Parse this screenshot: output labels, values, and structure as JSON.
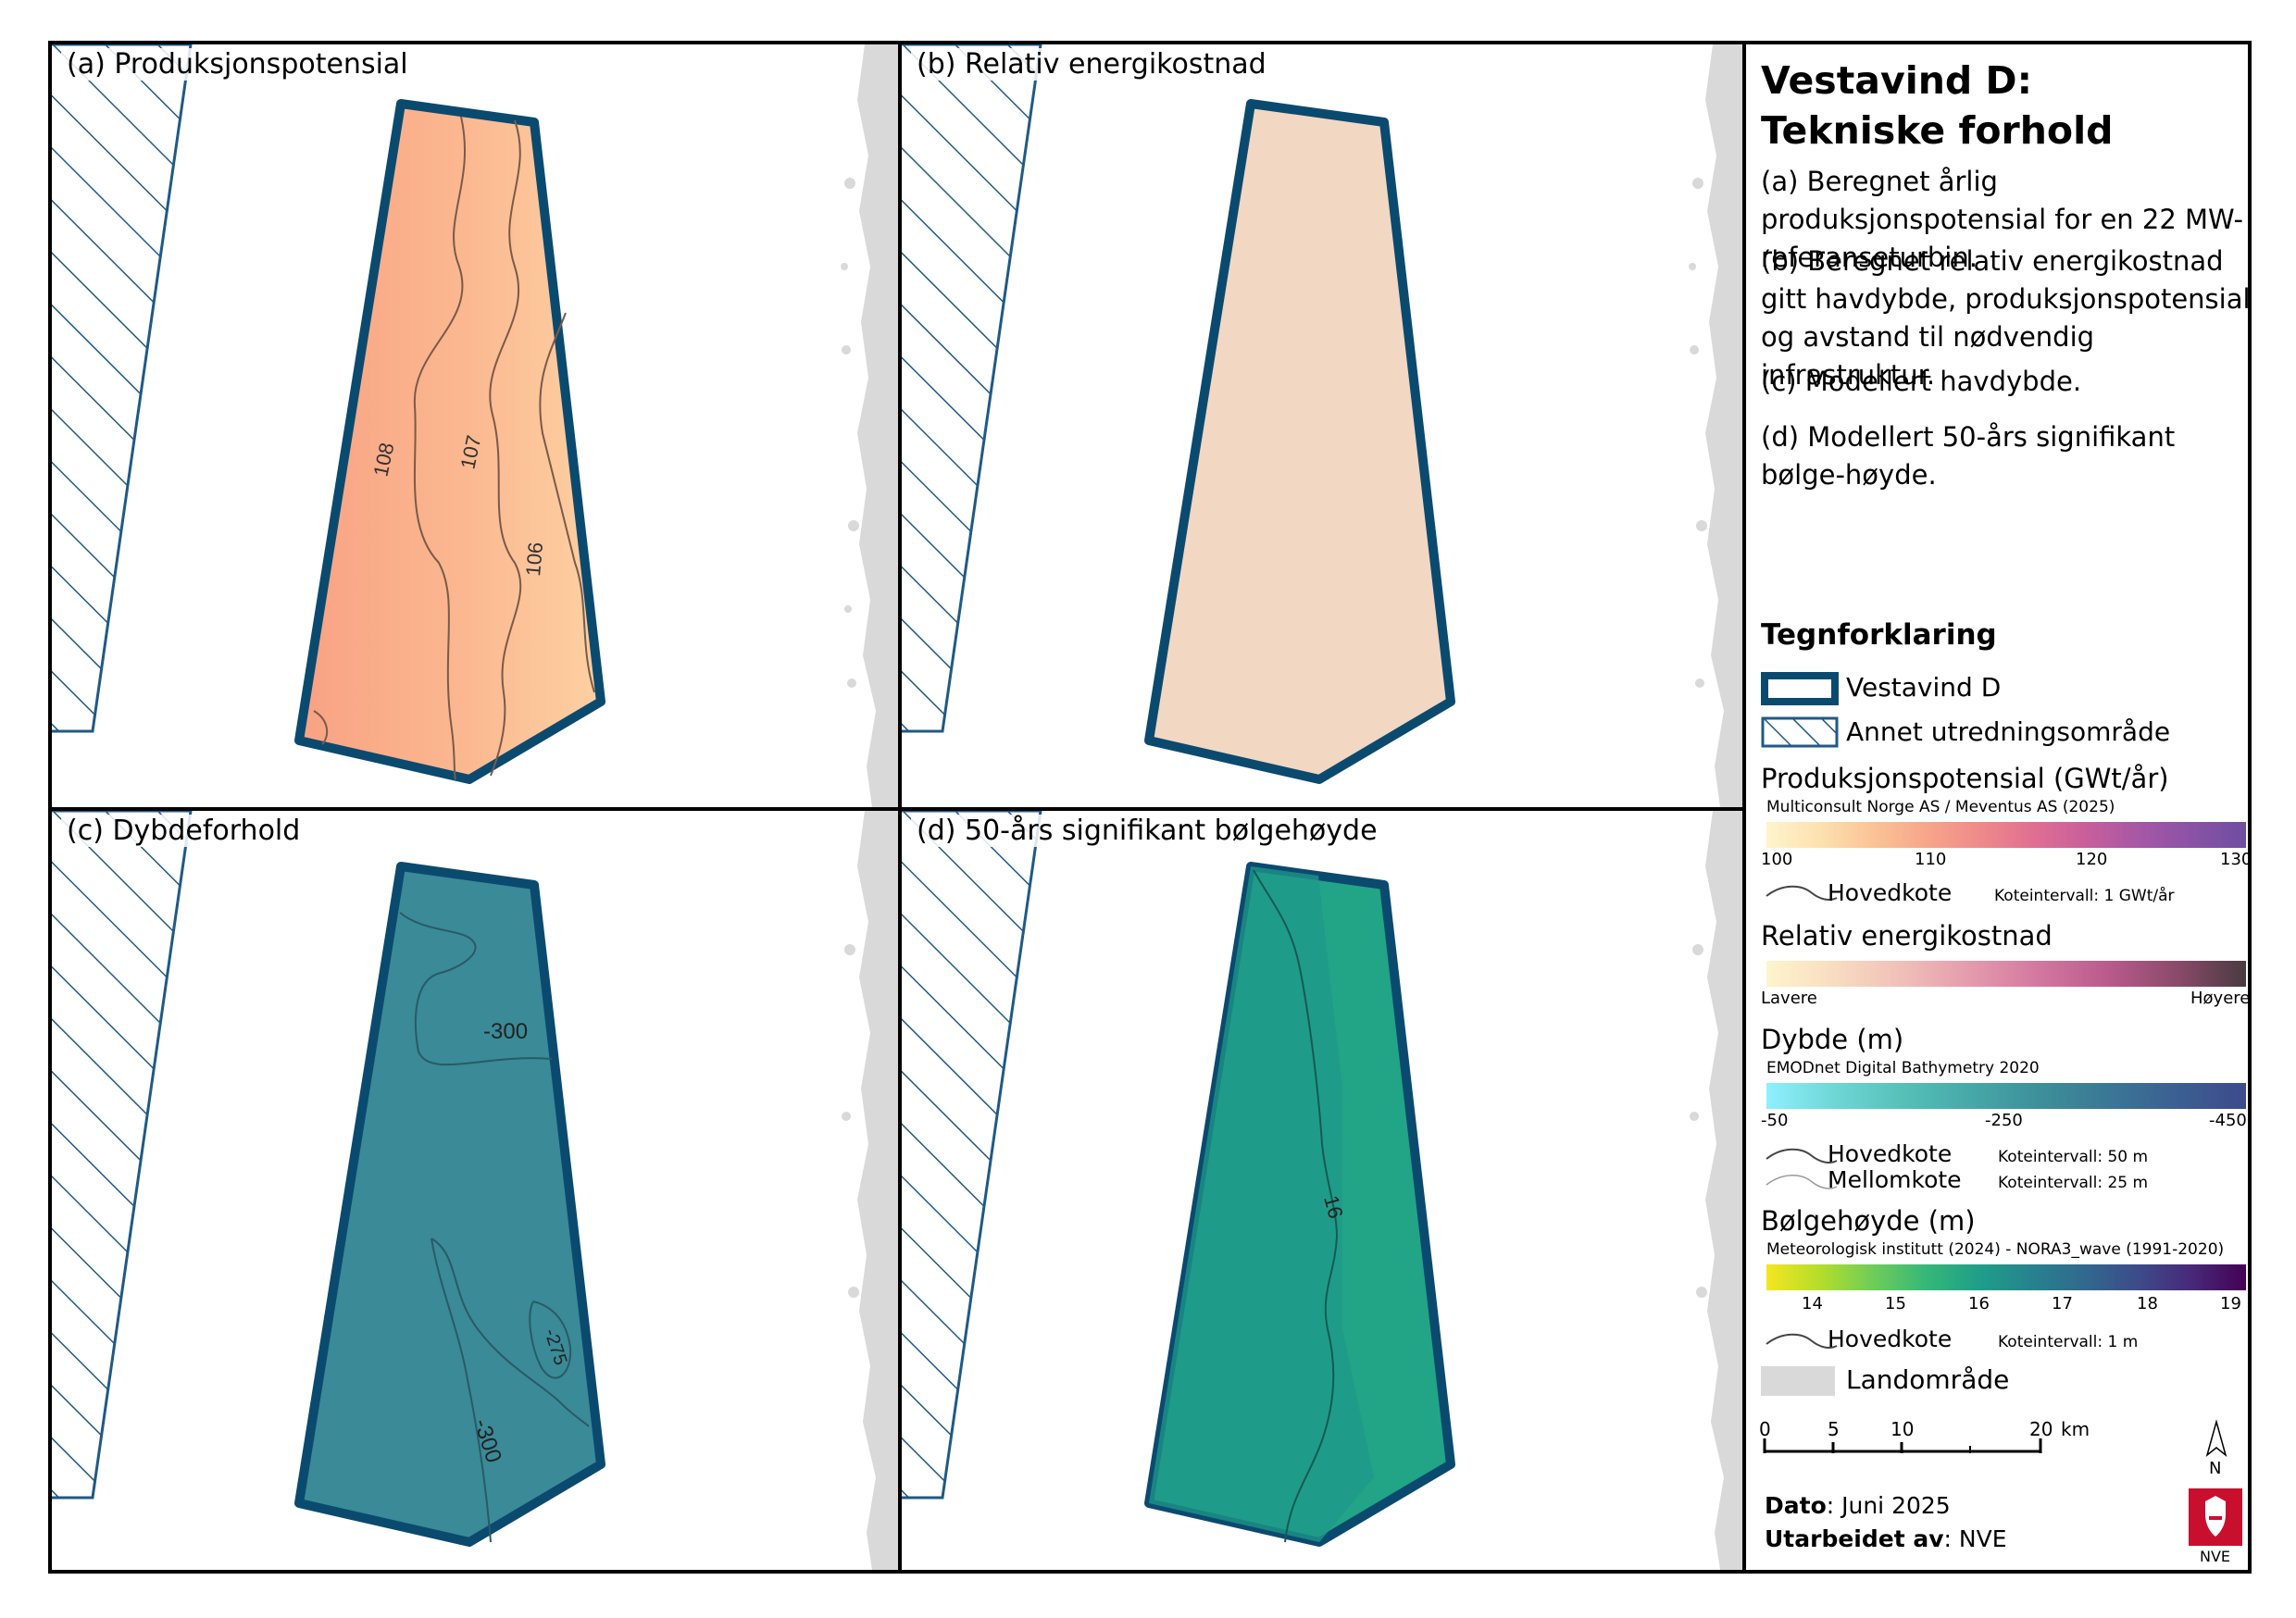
{
  "panels": {
    "a": {
      "title": "(a) Produksjonspotensial",
      "contours": [
        "108",
        "107",
        "106"
      ]
    },
    "b": {
      "title": "(b) Relativ energikostnad"
    },
    "c": {
      "title": "(c) Dybdeforhold",
      "contours": [
        "-300",
        "-275",
        "-300"
      ]
    },
    "d": {
      "title": "(d) 50-års signifikant bølgehøyde",
      "contours": [
        "16"
      ]
    }
  },
  "legend": {
    "title_line1": "Vestavind D:",
    "title_line2": "Tekniske forhold",
    "desc_a": "(a) Beregnet årlig produksjonspotensial for en 22 MW-referanseturbin.",
    "desc_b": "(b) Beregnet relativ energikostnad gitt havdybde, produksjonspotensial og avstand til nødvendig infrastruktur.",
    "desc_c": "(c) Modellert havdybde.",
    "desc_d": "(d) Modellert 50-års signifikant bølge-høyde.",
    "heading": "Tegnforklaring",
    "area_label": "Vestavind D",
    "other_area_label": "Annet utredningsområde",
    "prod": {
      "title": "Produksjonspotensial (GWt/år)",
      "source": "Multiconsult Norge AS / Meventus AS (2025)",
      "ticks": [
        "100",
        "110",
        "120",
        "130"
      ],
      "contour_label": "Hovedkote",
      "interval": "Koteintervall: 1 GWt/år"
    },
    "cost": {
      "title": "Relativ energikostnad",
      "low": "Lavere",
      "high": "Høyere"
    },
    "depth": {
      "title": "Dybde (m)",
      "source": "EMODnet Digital Bathymetry 2020",
      "ticks": [
        "-50",
        "-250",
        "-450"
      ],
      "main_label": "Hovedkote",
      "main_interval": "Koteintervall: 50 m",
      "mid_label": "Mellomkote",
      "mid_interval": "Koteintervall: 25 m"
    },
    "wave": {
      "title": "Bølgehøyde (m)",
      "source": "Meteorologisk institutt (2024) - NORA3_wave (1991-2020)",
      "ticks": [
        "14",
        "15",
        "16",
        "17",
        "18",
        "19"
      ],
      "contour_label": "Hovedkote",
      "interval": "Koteintervall: 1 m"
    },
    "land_label": "Landområde",
    "scale": {
      "ticks": [
        "0",
        "5",
        "10",
        "20"
      ],
      "unit": "km"
    },
    "north": "N",
    "date_label": "Dato",
    "date_value": ": Juni 2025",
    "author_label": "Utarbeidet av",
    "author_value": ": NVE",
    "logo_text": "NVE"
  },
  "colors": {
    "area_outline": "#0b4a6f",
    "land": "#d9d9d9",
    "hatch": "#1f5a85",
    "prod_fill_left": "#f8a283",
    "prod_fill_right": "#fdd0a2",
    "cost_fill": "#f2d7c2",
    "depth_fill": "#3a8a98",
    "wave_fill": "#22a487",
    "nve_red": "#c8102e"
  }
}
